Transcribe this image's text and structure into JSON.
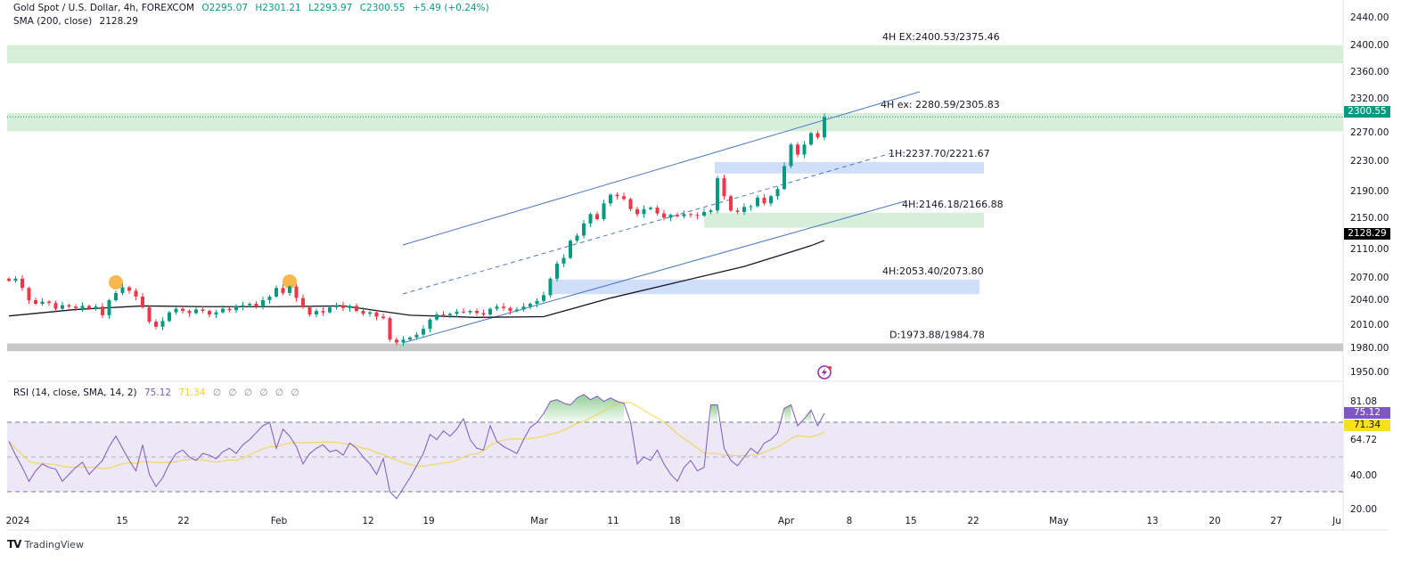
{
  "header": {
    "symbol": "Gold Spot / U.S. Dollar, 4h, FOREXCOM",
    "open": "O2295.07",
    "high": "H2301.21",
    "low": "L2293.97",
    "close": "C2300.55",
    "change": "+5.49 (+0.24%)",
    "sma_label": "SMA (200, close)",
    "sma_value": "2128.29"
  },
  "rsi_legend": {
    "label": "RSI (14, close, SMA, 14, 2)",
    "rsi_value": "75.12",
    "ma_value": "71.34",
    "extra": [
      "∅",
      "∅",
      "∅",
      "∅",
      "∅",
      "∅"
    ]
  },
  "colors": {
    "up": "#089981",
    "down": "#f23645",
    "sma": "#131722",
    "rsi": "#7e57c2",
    "rsi_ma": "#f2d024",
    "green_zone": "#d7eed9",
    "blue_zone": "#d1defa",
    "gray_zone": "#c8c8c8",
    "channel": "#4a78c8",
    "marker": "#f5a623"
  },
  "price_axis": {
    "ticks": [
      "2440.00",
      "2400.00",
      "2360.00",
      "2320.00",
      "2270.00",
      "2230.00",
      "2190.00",
      "2150.00",
      "2110.00",
      "2070.00",
      "2040.00",
      "2010.00",
      "1980.00",
      "1950.00"
    ],
    "last_price": "2300.55",
    "sma_price": "2128.29"
  },
  "rsi_axis": {
    "ticks": [
      "81.08",
      "64.72",
      "40.00",
      "20.00"
    ],
    "rsi_label": "75.12",
    "ma_label": "71.34"
  },
  "time_axis": {
    "ticks": [
      "2024",
      "15",
      "22",
      "Feb",
      "12",
      "19",
      "Mar",
      "11",
      "18",
      "Apr",
      "8",
      "15",
      "22",
      "May",
      "13",
      "20",
      "27",
      "Ju"
    ]
  },
  "zones": [
    {
      "label": "4H EX:2400.53/2375.46",
      "top": 2400.53,
      "bottom": 2375.46,
      "type": "green"
    },
    {
      "label": "4H ex: 2280.59/2305.83",
      "top": 2305.83,
      "bottom": 2280.59,
      "type": "green"
    },
    {
      "label": "1H:2237.70/2221.67",
      "top": 2237.7,
      "bottom": 2221.67,
      "type": "blue"
    },
    {
      "label": "4H:2146.18/2166.88",
      "top": 2166.88,
      "bottom": 2146.18,
      "type": "green"
    },
    {
      "label": "4H:2053.40/2073.80",
      "top": 2073.8,
      "bottom": 2053.4,
      "type": "blue"
    },
    {
      "label": "D:1973.88/1984.78",
      "top": 1984.78,
      "bottom": 1973.88,
      "type": "gray"
    }
  ],
  "chart_data": {
    "type": "candlestick",
    "ylim": [
      1950,
      2440
    ],
    "closes": [
      2072,
      2075,
      2062,
      2045,
      2040,
      2043,
      2041,
      2033,
      2038,
      2036,
      2034,
      2037,
      2033,
      2036,
      2024,
      2045,
      2055,
      2063,
      2058,
      2050,
      2035,
      2015,
      2008,
      2016,
      2028,
      2033,
      2030,
      2027,
      2032,
      2030,
      2025,
      2028,
      2033,
      2031,
      2036,
      2038,
      2040,
      2036,
      2045,
      2050,
      2062,
      2055,
      2064,
      2048,
      2035,
      2025,
      2030,
      2028,
      2035,
      2038,
      2034,
      2037,
      2030,
      2026,
      2028,
      2022,
      2020,
      1990,
      1986,
      1990,
      1993,
      1997,
      2005,
      2018,
      2025,
      2024,
      2026,
      2029,
      2028,
      2030,
      2027,
      2025,
      2033,
      2036,
      2034,
      2030,
      2032,
      2036,
      2040,
      2044,
      2052,
      2075,
      2096,
      2104,
      2128,
      2135,
      2152,
      2165,
      2158,
      2180,
      2192,
      2190,
      2186,
      2172,
      2165,
      2172,
      2174,
      2166,
      2160,
      2164,
      2162,
      2165,
      2164,
      2163,
      2168,
      2170,
      2215,
      2190,
      2170,
      2168,
      2175,
      2176,
      2188,
      2180,
      2190,
      2200,
      2232,
      2262,
      2248,
      2262,
      2278,
      2272,
      2300.55
    ],
    "sma200": [
      2023,
      2032,
      2037,
      2036,
      2036,
      2037,
      2024,
      2021,
      2022,
      2048,
      2070,
      2092,
      2121,
      2128.29
    ],
    "rsi_ylim": [
      20,
      85
    ],
    "rsi": [
      59,
      51,
      44,
      36,
      42,
      46,
      44,
      43,
      36,
      40,
      44,
      47,
      40,
      44,
      48,
      56,
      62,
      55,
      48,
      42,
      57,
      40,
      33,
      38,
      46,
      52,
      54,
      50,
      48,
      52,
      51,
      49,
      53,
      55,
      52,
      57,
      60,
      64,
      68,
      70,
      55,
      66,
      62,
      56,
      46,
      52,
      55,
      57,
      53,
      54,
      51,
      58,
      55,
      50,
      46,
      40,
      49,
      30,
      26,
      32,
      38,
      45,
      52,
      63,
      60,
      65,
      62,
      66,
      72,
      60,
      55,
      54,
      68,
      59,
      56,
      54,
      52,
      60,
      67,
      70,
      75,
      82,
      83,
      81,
      80,
      84,
      86,
      83,
      85,
      82,
      84,
      82,
      81,
      70,
      46,
      50,
      48,
      54,
      46,
      40,
      36,
      44,
      48,
      42,
      44,
      80,
      80,
      55,
      48,
      45,
      50,
      55,
      52,
      58,
      60,
      64,
      78,
      80,
      68,
      72,
      77,
      68,
      75.12
    ],
    "rsi_bands": [
      70,
      50,
      30
    ]
  },
  "footer": {
    "brand": "TradingView"
  }
}
